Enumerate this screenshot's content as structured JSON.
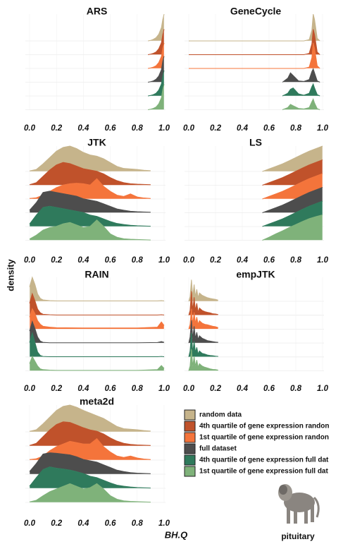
{
  "chart_data": [
    {
      "type": "ridgeline",
      "title": "ARS",
      "xlim": [
        0,
        1
      ],
      "xticks": [
        {
          "value": 0,
          "label": "0.0"
        },
        {
          "value": 0.2,
          "label": "0.2"
        },
        {
          "value": 0.4,
          "label": "0.4"
        },
        {
          "value": 0.6,
          "label": "0.6"
        },
        {
          "value": 0.8,
          "label": "0.8"
        },
        {
          "value": 1,
          "label": "1.0"
        }
      ],
      "x": [
        0.88,
        0.9,
        0.92,
        0.94,
        0.96,
        0.98,
        0.99,
        1.0
      ],
      "series": [
        {
          "values": [
            0,
            0.02,
            0.06,
            0.12,
            0.25,
            0.5,
            0.8,
            1.0
          ]
        },
        {
          "values": [
            0,
            0.02,
            0.05,
            0.1,
            0.22,
            0.45,
            0.75,
            0.95
          ]
        },
        {
          "values": [
            0,
            0.02,
            0.05,
            0.1,
            0.22,
            0.45,
            0.75,
            0.95
          ]
        },
        {
          "values": [
            0,
            0.02,
            0.05,
            0.11,
            0.23,
            0.47,
            0.78,
            0.97
          ]
        },
        {
          "values": [
            0,
            0.02,
            0.05,
            0.1,
            0.22,
            0.45,
            0.75,
            0.95
          ]
        },
        {
          "values": [
            0,
            0.02,
            0.05,
            0.1,
            0.22,
            0.45,
            0.75,
            0.95
          ]
        }
      ]
    },
    {
      "type": "ridgeline",
      "title": "GeneCycle",
      "xlim": [
        0,
        1
      ],
      "xticks": [
        {
          "value": 0,
          "label": "0.0"
        },
        {
          "value": 0.2,
          "label": "0.2"
        },
        {
          "value": 0.4,
          "label": "0.4"
        },
        {
          "value": 0.6,
          "label": "0.6"
        },
        {
          "value": 0.8,
          "label": "0.8"
        },
        {
          "value": 1,
          "label": "1.0"
        }
      ],
      "x": [
        0,
        0.7,
        0.74,
        0.76,
        0.78,
        0.82,
        0.86,
        0.9,
        0.92,
        0.93,
        0.94,
        0.96,
        0.98
      ],
      "series": [
        {
          "values": [
            0,
            0,
            0,
            0,
            0,
            0,
            0,
            0.05,
            0.4,
            1.0,
            0.8,
            0.1,
            0
          ]
        },
        {
          "values": [
            0,
            0,
            0,
            0,
            0,
            0,
            0,
            0.05,
            0.4,
            0.95,
            0.75,
            0.1,
            0
          ]
        },
        {
          "values": [
            0,
            0,
            0,
            0,
            0,
            0,
            0,
            0.05,
            0.4,
            0.95,
            0.75,
            0.1,
            0
          ]
        },
        {
          "values": [
            null,
            0,
            0.15,
            0.35,
            0.25,
            0.05,
            0.03,
            0.1,
            0.4,
            0.5,
            0.35,
            0.05,
            0
          ]
        },
        {
          "values": [
            null,
            0,
            0.1,
            0.25,
            0.3,
            0.08,
            0.03,
            0.1,
            0.35,
            0.45,
            0.3,
            0.05,
            0
          ]
        },
        {
          "values": [
            null,
            0,
            0.08,
            0.2,
            0.15,
            0.05,
            0.03,
            0.08,
            0.3,
            0.4,
            0.25,
            0.04,
            0
          ]
        }
      ]
    },
    {
      "type": "ridgeline",
      "title": "JTK",
      "xlim": [
        0,
        1
      ],
      "xticks": [
        {
          "value": 0,
          "label": "0.0"
        },
        {
          "value": 0.2,
          "label": "0.2"
        },
        {
          "value": 0.4,
          "label": "0.4"
        },
        {
          "value": 0.6,
          "label": "0.6"
        },
        {
          "value": 0.8,
          "label": "0.8"
        },
        {
          "value": 1,
          "label": "1.0"
        }
      ],
      "x": [
        0,
        0.05,
        0.1,
        0.15,
        0.2,
        0.25,
        0.3,
        0.35,
        0.4,
        0.45,
        0.5,
        0.55,
        0.6,
        0.65,
        0.7,
        0.75,
        0.8,
        0.85,
        0.9
      ],
      "series": [
        {
          "values": [
            0.02,
            0.08,
            0.3,
            0.55,
            0.8,
            0.95,
            1.0,
            0.9,
            0.75,
            0.65,
            0.6,
            0.5,
            0.35,
            0.2,
            0.12,
            0.1,
            0.08,
            0.05,
            0.03
          ]
        },
        {
          "values": [
            0.02,
            0.1,
            0.35,
            0.6,
            0.8,
            0.9,
            0.85,
            0.75,
            0.65,
            0.6,
            0.55,
            0.45,
            0.3,
            0.18,
            0.1,
            0.06,
            0.04,
            0.03,
            0.02
          ]
        },
        {
          "values": [
            0.02,
            0.05,
            0.15,
            0.3,
            0.45,
            0.55,
            0.6,
            0.62,
            0.6,
            0.55,
            0.8,
            0.5,
            0.3,
            0.15,
            0.1,
            0.2,
            0.08,
            0.04,
            0.02
          ]
        },
        {
          "values": [
            0.1,
            0.4,
            0.8,
            0.85,
            0.8,
            0.75,
            0.7,
            0.65,
            0.55,
            0.5,
            0.45,
            0.35,
            0.25,
            0.15,
            0.1,
            0.06,
            0.04,
            0.03,
            0.02
          ]
        },
        {
          "values": [
            0.1,
            0.45,
            0.75,
            0.8,
            0.75,
            0.7,
            0.65,
            0.6,
            0.55,
            0.45,
            0.4,
            0.3,
            0.2,
            0.12,
            0.08,
            0.05,
            0.03,
            0.02,
            0.01
          ]
        },
        {
          "values": [
            0.05,
            0.2,
            0.4,
            0.5,
            0.55,
            0.65,
            0.7,
            0.6,
            0.5,
            0.55,
            0.8,
            0.55,
            0.25,
            0.12,
            0.06,
            0.04,
            0.03,
            0.02,
            0.01
          ]
        }
      ]
    },
    {
      "type": "ridgeline",
      "title": "LS",
      "xlim": [
        0,
        1
      ],
      "xticks": [
        {
          "value": 0,
          "label": "0.0"
        },
        {
          "value": 0.2,
          "label": "0.2"
        },
        {
          "value": 0.4,
          "label": "0.4"
        },
        {
          "value": 0.6,
          "label": "0.6"
        },
        {
          "value": 0.8,
          "label": "0.8"
        },
        {
          "value": 1,
          "label": "1.0"
        }
      ],
      "x": [
        0.55,
        0.6,
        0.65,
        0.7,
        0.75,
        0.8,
        0.85,
        0.9,
        0.95,
        1.0
      ],
      "series": [
        {
          "values": [
            0,
            0.1,
            0.2,
            0.3,
            0.42,
            0.55,
            0.68,
            0.8,
            0.9,
            1.0
          ]
        },
        {
          "values": [
            0,
            0.1,
            0.2,
            0.3,
            0.42,
            0.55,
            0.68,
            0.8,
            0.9,
            1.0
          ]
        },
        {
          "values": [
            0,
            0.1,
            0.2,
            0.3,
            0.42,
            0.55,
            0.68,
            0.8,
            0.9,
            1.0
          ]
        },
        {
          "values": [
            0,
            0.1,
            0.2,
            0.3,
            0.42,
            0.55,
            0.68,
            0.8,
            0.9,
            1.0
          ]
        },
        {
          "values": [
            0,
            0.1,
            0.2,
            0.3,
            0.42,
            0.55,
            0.68,
            0.8,
            0.9,
            1.0
          ]
        },
        {
          "values": [
            0,
            0.12,
            0.25,
            0.37,
            0.5,
            0.62,
            0.74,
            0.85,
            0.93,
            1.0
          ]
        }
      ]
    },
    {
      "type": "ridgeline",
      "title": "RAIN",
      "xlim": [
        0,
        1
      ],
      "xticks": [
        {
          "value": 0,
          "label": "0.0"
        },
        {
          "value": 0.2,
          "label": "0.2"
        },
        {
          "value": 0.4,
          "label": "0.4"
        },
        {
          "value": 0.6,
          "label": "0.6"
        },
        {
          "value": 0.8,
          "label": "0.8"
        },
        {
          "value": 1,
          "label": "1.0"
        }
      ],
      "x": [
        0,
        0.02,
        0.04,
        0.06,
        0.08,
        0.1,
        0.15,
        0.2,
        0.4,
        0.6,
        0.8,
        0.95,
        0.98,
        1.0
      ],
      "series": [
        {
          "values": [
            0.6,
            1.0,
            0.7,
            0.3,
            0.12,
            0.06,
            0.03,
            0.02,
            0.02,
            0.02,
            0.02,
            0.02,
            0.03,
            0.02
          ]
        },
        {
          "values": [
            0.5,
            0.9,
            0.6,
            0.25,
            0.1,
            0.04,
            0.02,
            0.01,
            0.01,
            0.01,
            0.01,
            0.01,
            0.02,
            0.01
          ]
        },
        {
          "values": [
            0.5,
            0.85,
            0.65,
            0.35,
            0.2,
            0.12,
            0.08,
            0.06,
            0.05,
            0.05,
            0.05,
            0.08,
            0.3,
            0.15
          ]
        },
        {
          "values": [
            0.5,
            0.9,
            0.6,
            0.25,
            0.08,
            0.03,
            0.01,
            0.01,
            0.01,
            0.01,
            0.01,
            0.02,
            0.06,
            0.03
          ]
        },
        {
          "values": [
            0.6,
            1.0,
            0.6,
            0.2,
            0.06,
            0.02,
            0.01,
            0.01,
            0.01,
            0.01,
            0.01,
            0.01,
            0.02,
            0.01
          ]
        },
        {
          "values": [
            0.3,
            0.6,
            0.4,
            0.2,
            0.08,
            0.05,
            0.03,
            0.02,
            0.02,
            0.02,
            0.02,
            0.05,
            0.22,
            0.1
          ]
        }
      ]
    },
    {
      "type": "ridgeline",
      "title": "empJTK",
      "xlim": [
        0,
        1
      ],
      "xticks": [
        {
          "value": 0,
          "label": "0.0"
        },
        {
          "value": 0.2,
          "label": "0.2"
        },
        {
          "value": 0.4,
          "label": "0.4"
        },
        {
          "value": 0.6,
          "label": "0.6"
        },
        {
          "value": 0.8,
          "label": "0.8"
        },
        {
          "value": 1,
          "label": "1.0"
        }
      ],
      "x": [
        0,
        0.01,
        0.02,
        0.03,
        0.04,
        0.05,
        0.06,
        0.07,
        0.08,
        0.1,
        0.12,
        0.14,
        0.16,
        0.18,
        0.2,
        0.22
      ],
      "series": [
        {
          "values": [
            0,
            0.2,
            0.9,
            0.2,
            0.7,
            0.2,
            0.5,
            0.15,
            0.35,
            0.25,
            0.2,
            0.15,
            0.12,
            0.1,
            0.08,
            0.05
          ]
        },
        {
          "values": [
            0,
            0.2,
            1.0,
            0.2,
            0.75,
            0.2,
            0.5,
            0.12,
            0.3,
            0.2,
            0.15,
            0.12,
            0.1,
            0.06,
            0.05,
            0.03
          ]
        },
        {
          "values": [
            0,
            0.2,
            0.85,
            0.2,
            0.7,
            0.25,
            0.5,
            0.2,
            0.35,
            0.25,
            0.2,
            0.18,
            0.15,
            0.12,
            0.1,
            0.06
          ]
        },
        {
          "values": [
            0,
            0.25,
            0.95,
            0.2,
            0.7,
            0.2,
            0.45,
            0.15,
            0.3,
            0.2,
            0.15,
            0.1,
            0.08,
            0.06,
            0.04,
            0.03
          ]
        },
        {
          "values": [
            0,
            0.25,
            1.0,
            0.2,
            0.65,
            0.2,
            0.4,
            0.12,
            0.25,
            0.15,
            0.12,
            0.08,
            0.06,
            0.05,
            0.03,
            0.02
          ]
        },
        {
          "values": [
            0,
            0.2,
            0.9,
            0.2,
            0.6,
            0.2,
            0.45,
            0.15,
            0.3,
            0.2,
            0.15,
            0.12,
            0.08,
            0.06,
            0.05,
            0.03
          ]
        }
      ]
    },
    {
      "type": "ridgeline",
      "title": "meta2d",
      "xlim": [
        0,
        1
      ],
      "xticks": [
        {
          "value": 0,
          "label": "0.0"
        },
        {
          "value": 0.2,
          "label": "0.2"
        },
        {
          "value": 0.4,
          "label": "0.4"
        },
        {
          "value": 0.6,
          "label": "0.6"
        },
        {
          "value": 0.8,
          "label": "0.8"
        },
        {
          "value": 1,
          "label": "1.0"
        }
      ],
      "x": [
        0,
        0.05,
        0.1,
        0.15,
        0.2,
        0.25,
        0.3,
        0.35,
        0.4,
        0.45,
        0.5,
        0.55,
        0.6,
        0.65,
        0.7,
        0.75,
        0.8,
        0.85,
        0.9
      ],
      "series": [
        {
          "values": [
            0.02,
            0.08,
            0.3,
            0.55,
            0.8,
            0.95,
            1.0,
            0.92,
            0.8,
            0.7,
            0.6,
            0.5,
            0.35,
            0.2,
            0.12,
            0.1,
            0.08,
            0.05,
            0.03
          ]
        },
        {
          "values": [
            0.02,
            0.1,
            0.35,
            0.6,
            0.8,
            0.9,
            0.88,
            0.78,
            0.68,
            0.6,
            0.55,
            0.45,
            0.3,
            0.18,
            0.1,
            0.06,
            0.04,
            0.03,
            0.02
          ]
        },
        {
          "values": [
            0.02,
            0.05,
            0.15,
            0.35,
            0.5,
            0.6,
            0.7,
            0.65,
            0.6,
            0.6,
            0.8,
            0.5,
            0.3,
            0.15,
            0.1,
            0.15,
            0.08,
            0.04,
            0.02
          ]
        },
        {
          "values": [
            0.1,
            0.4,
            0.75,
            0.8,
            0.78,
            0.75,
            0.72,
            0.65,
            0.55,
            0.5,
            0.45,
            0.35,
            0.25,
            0.15,
            0.1,
            0.06,
            0.04,
            0.03,
            0.02
          ]
        },
        {
          "values": [
            0.08,
            0.4,
            0.7,
            0.8,
            0.75,
            0.72,
            0.68,
            0.62,
            0.55,
            0.45,
            0.4,
            0.3,
            0.2,
            0.12,
            0.08,
            0.05,
            0.03,
            0.02,
            0.01
          ]
        },
        {
          "values": [
            0.02,
            0.08,
            0.25,
            0.4,
            0.5,
            0.6,
            0.7,
            0.6,
            0.5,
            0.55,
            0.7,
            0.5,
            0.25,
            0.12,
            0.06,
            0.04,
            0.03,
            0.02,
            0.01
          ]
        }
      ]
    }
  ],
  "legend": {
    "entries": [
      {
        "name": "random data",
        "color": "#c6b48b"
      },
      {
        "name": "4th quartile of gene expression randon",
        "color": "#c0522b"
      },
      {
        "name": "1st quartile of gene expression randon",
        "color": "#f4743b"
      },
      {
        "name": "full dataset",
        "color": "#4d4d4d"
      },
      {
        "name": "4th quartile of gene expression full dat",
        "color": "#2f7a5c"
      },
      {
        "name": "1st quartile of gene expression full dat",
        "color": "#7fb27a"
      }
    ]
  },
  "y_label": "density",
  "x_label": "BH.Q",
  "tissue": "pituitary"
}
